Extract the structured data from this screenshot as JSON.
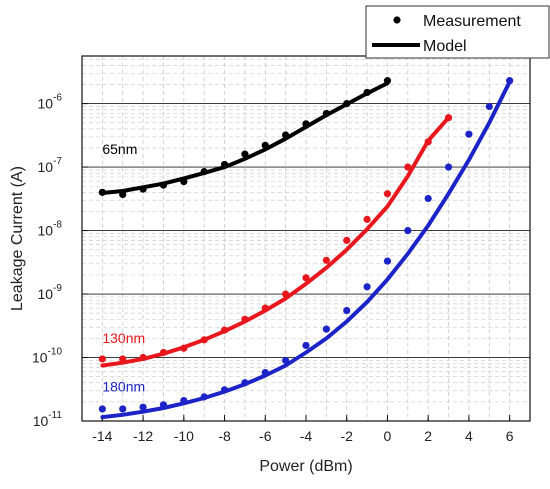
{
  "chart_data": {
    "type": "scatter",
    "xlabel": "Power (dBm)",
    "ylabel": "Leakage Current (A)",
    "xlim": [
      -15,
      7
    ],
    "ylim_log10": [
      -11,
      -5.25
    ],
    "y_scale": "log",
    "x_ticks": [
      -14,
      -12,
      -10,
      -8,
      -6,
      -4,
      -2,
      0,
      2,
      4,
      6
    ],
    "y_tick_exponents": [
      -11,
      -10,
      -9,
      -8,
      -7,
      -6
    ],
    "grid": true,
    "legend": {
      "position": "top-right",
      "entries": [
        {
          "label": "Measurement",
          "style": "marker"
        },
        {
          "label": "Model",
          "style": "line"
        }
      ]
    },
    "series": [
      {
        "annotation": "65nm",
        "color": "#000000",
        "measurement": {
          "x": [
            -14,
            -13,
            -12,
            -11,
            -10,
            -9,
            -8,
            -7,
            -6,
            -5,
            -4,
            -3,
            -2,
            -1,
            0
          ],
          "y": [
            4e-08,
            3.7e-08,
            4.5e-08,
            5.2e-08,
            5.9e-08,
            8.5e-08,
            1.1e-07,
            1.6e-07,
            2.2e-07,
            3.2e-07,
            4.8e-07,
            7e-07,
            1e-06,
            1.5e-06,
            2.3e-06
          ]
        },
        "model": {
          "x": [
            -14,
            -13,
            -12,
            -11,
            -10,
            -9,
            -8,
            -7,
            -6,
            -5,
            -4,
            -3,
            -2,
            -1,
            0
          ],
          "y": [
            3.9e-08,
            4.2e-08,
            4.8e-08,
            5.5e-08,
            6.6e-08,
            8.1e-08,
            1e-07,
            1.35e-07,
            1.9e-07,
            2.8e-07,
            4.3e-07,
            6.6e-07,
            9.8e-07,
            1.45e-06,
            2.1e-06
          ]
        }
      },
      {
        "annotation": "130nm",
        "color": "#e8171d",
        "measurement": {
          "x": [
            -14,
            -13,
            -12,
            -11,
            -10,
            -9,
            -8,
            -7,
            -6,
            -5,
            -4,
            -3,
            -2,
            -1,
            0,
            1,
            2,
            3
          ],
          "y": [
            9.5e-11,
            9.5e-11,
            1e-10,
            1.2e-10,
            1.4e-10,
            1.9e-10,
            2.7e-10,
            4e-10,
            6e-10,
            1e-09,
            1.8e-09,
            3.4e-09,
            7e-09,
            1.5e-08,
            3.8e-08,
            1e-07,
            2.5e-07,
            6e-07
          ]
        },
        "model": {
          "x": [
            -14,
            -13,
            -12,
            -11,
            -10,
            -9,
            -8,
            -7,
            -6,
            -5,
            -4,
            -3,
            -2,
            -1,
            0,
            1,
            2,
            3
          ],
          "y": [
            7.5e-11,
            8.3e-11,
            9.5e-11,
            1.15e-10,
            1.45e-10,
            1.9e-10,
            2.6e-10,
            3.7e-10,
            5.5e-10,
            8.5e-10,
            1.45e-09,
            2.6e-09,
            5e-09,
            1.05e-08,
            2.4e-08,
            7.2e-08,
            2.6e-07,
            6e-07
          ]
        }
      },
      {
        "annotation": "180nm",
        "color": "#1c24c8",
        "measurement": {
          "x": [
            -14,
            -13,
            -12,
            -11,
            -10,
            -9,
            -8,
            -7,
            -6,
            -5,
            -4,
            -3,
            -2,
            -1,
            0,
            1,
            2,
            3,
            4,
            5,
            6
          ],
          "y": [
            1.55e-11,
            1.55e-11,
            1.65e-11,
            1.8e-11,
            2.1e-11,
            2.4e-11,
            3.1e-11,
            4e-11,
            5.8e-11,
            9e-11,
            1.55e-10,
            2.8e-10,
            5.5e-10,
            1.3e-09,
            3.3e-09,
            1e-08,
            3.2e-08,
            1e-07,
            3.3e-07,
            9e-07,
            2.3e-06
          ]
        },
        "model": {
          "x": [
            -14,
            -13,
            -12,
            -11,
            -10,
            -9,
            -8,
            -7,
            -6,
            -5,
            -4,
            -3,
            -2,
            -1,
            0,
            1,
            2,
            3,
            4,
            5,
            6
          ],
          "y": [
            1.15e-11,
            1.25e-11,
            1.4e-11,
            1.6e-11,
            1.9e-11,
            2.3e-11,
            2.9e-11,
            3.8e-11,
            5.2e-11,
            7.5e-11,
            1.2e-10,
            2e-10,
            3.7e-10,
            7.5e-10,
            1.7e-09,
            4.3e-09,
            1.2e-08,
            3.8e-08,
            1.3e-07,
            5e-07,
            2.2e-06
          ]
        }
      }
    ]
  }
}
